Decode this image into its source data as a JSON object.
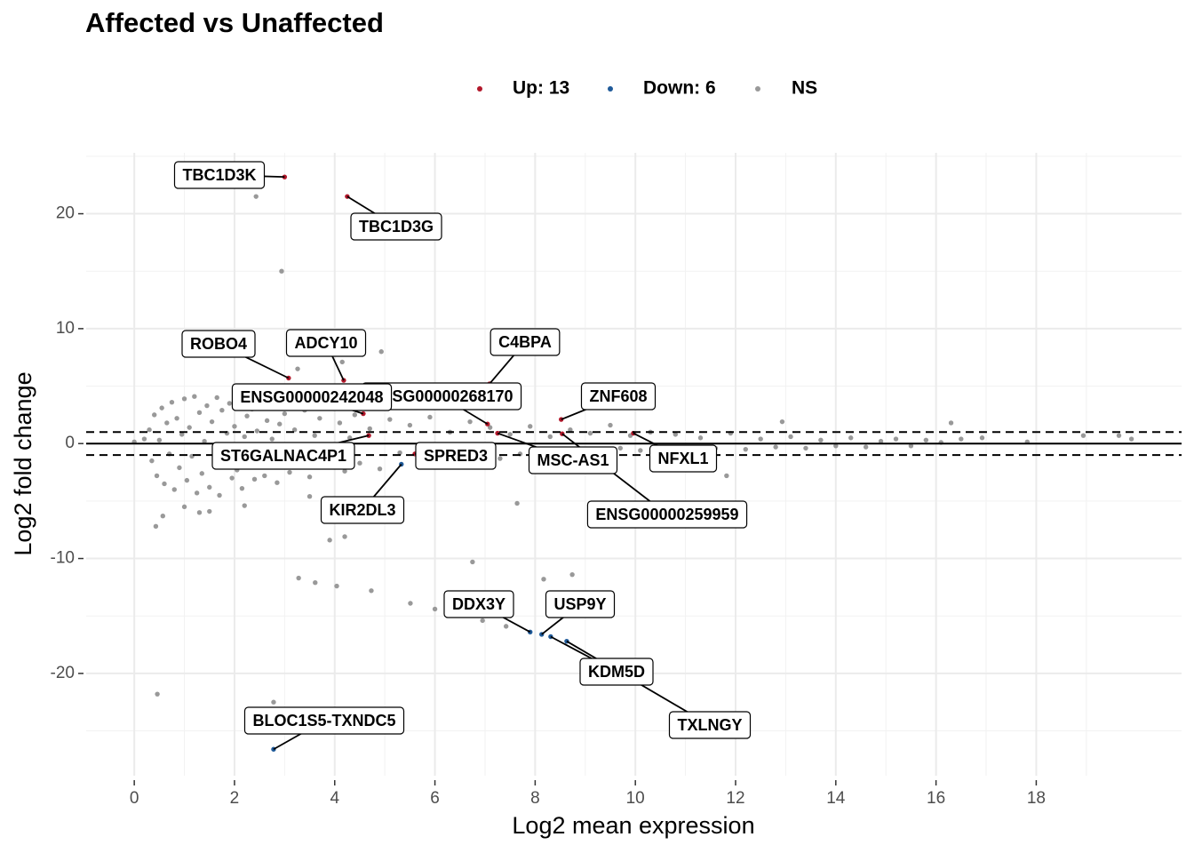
{
  "chart_data": {
    "type": "scatter",
    "title": "Affected vs Unaffected",
    "xlabel": "Log2 mean expression",
    "ylabel": "Log2 fold change",
    "xlim": [
      -0.96,
      20.9
    ],
    "ylim": [
      -28.9,
      25.3
    ],
    "xticks": [
      0,
      2,
      4,
      6,
      8,
      10,
      12,
      14,
      16,
      18
    ],
    "yticks": [
      -20,
      -10,
      0,
      10,
      20
    ],
    "x_minor_grid": [
      1,
      3,
      5,
      7,
      9,
      11,
      13,
      15,
      17,
      19
    ],
    "y_minor_grid": [
      -25,
      -15,
      -5,
      5,
      15,
      25
    ],
    "grid": true,
    "legend": "top",
    "reference_lines": [
      {
        "value": 0,
        "style": "solid"
      },
      {
        "value": 1,
        "style": "dashed"
      },
      {
        "value": -1,
        "style": "dashed"
      }
    ],
    "series": [
      {
        "name": "Up: 13",
        "color": "#b2182b",
        "labels": [
          "TBC1D3K",
          "TBC1D3G",
          "ROBO4",
          "ADCY10",
          "C4BPA",
          "ENSG00000268170",
          "ENSG00000242048",
          "ZNF608",
          "ST6GALNAC4P1",
          "SPRED3",
          "MSC-AS1",
          "NFXL1",
          "ENSG00000259959"
        ],
        "x": [
          3.0,
          4.25,
          3.08,
          4.18,
          7.09,
          7.05,
          4.57,
          8.52,
          4.68,
          5.6,
          7.25,
          9.96,
          8.54
        ],
        "y": [
          23.2,
          21.5,
          5.7,
          5.5,
          5.2,
          1.7,
          2.6,
          2.1,
          0.7,
          -0.9,
          0.9,
          0.9,
          0.85
        ]
      },
      {
        "name": "Down: 6",
        "color": "#1f5a99",
        "labels": [
          "KIR2DL3",
          "DDX3Y",
          "USP9Y",
          "KDM5D",
          "TXLNGY",
          "BLOC1S5-TXNDC5"
        ],
        "x": [
          5.33,
          7.9,
          8.13,
          8.31,
          8.63,
          2.78
        ],
        "y": [
          -1.8,
          -16.4,
          -16.6,
          -16.8,
          -17.2,
          -26.6
        ]
      },
      {
        "name": "NS",
        "color": "#999999",
        "x": [
          0.3,
          0.35,
          0.4,
          0.45,
          0.5,
          0.55,
          0.6,
          0.65,
          0.7,
          0.75,
          0.8,
          0.85,
          0.9,
          0.95,
          1.0,
          1.05,
          1.1,
          1.15,
          1.2,
          1.25,
          1.3,
          1.35,
          1.4,
          1.45,
          1.5,
          1.55,
          1.6,
          1.65,
          1.7,
          1.75,
          1.8,
          1.85,
          1.9,
          1.95,
          2.0,
          2.05,
          2.1,
          2.15,
          2.2,
          2.25,
          2.3,
          2.35,
          2.4,
          2.45,
          2.5,
          2.55,
          2.6,
          2.65,
          2.7,
          2.75,
          2.8,
          2.85,
          2.9,
          2.95,
          3.0,
          3.1,
          3.2,
          3.3,
          3.4,
          3.5,
          3.6,
          3.7,
          3.8,
          3.9,
          4.0,
          4.1,
          4.2,
          4.3,
          4.4,
          4.5,
          4.7,
          4.9,
          5.1,
          5.3,
          5.5,
          5.7,
          5.9,
          6.1,
          6.3,
          6.5,
          6.7,
          6.9,
          7.1,
          7.3,
          7.5,
          7.7,
          7.9,
          8.1,
          8.3,
          8.5,
          8.7,
          8.9,
          9.1,
          9.3,
          9.5,
          9.7,
          9.9,
          10.1,
          10.3,
          10.5,
          10.8,
          11.0,
          11.3,
          11.6,
          11.9,
          12.2,
          12.5,
          12.8,
          13.1,
          13.4,
          13.7,
          14.0,
          14.3,
          14.6,
          14.9,
          15.2,
          15.5,
          15.8,
          16.1,
          16.5,
          0.2,
          1.0,
          1.3,
          1.5,
          2.2,
          3.0,
          3.5,
          2.43,
          2.94,
          4.93,
          0.46,
          2.78,
          3.28,
          3.61,
          4.04,
          4.2,
          3.9,
          4.73,
          5.51,
          6.75,
          8.17,
          8.74,
          7.64,
          6.95,
          7.42,
          6.0,
          4.15,
          3.26,
          17.82,
          19.65,
          19.9,
          18.94,
          16.92,
          16.3,
          12.93,
          11.82,
          0.43,
          0.57,
          0.0
        ],
        "y": [
          1.2,
          -1.5,
          2.5,
          -2.8,
          0.3,
          3.1,
          -3.5,
          1.8,
          -0.9,
          3.6,
          -4.0,
          2.2,
          -2.1,
          0.8,
          3.9,
          -3.2,
          1.4,
          -1.1,
          4.1,
          -4.3,
          2.7,
          -2.6,
          0.2,
          3.3,
          -3.8,
          1.9,
          -0.5,
          4.0,
          -4.5,
          2.9,
          -1.8,
          0.9,
          3.5,
          -3.0,
          1.5,
          -2.3,
          4.2,
          -3.9,
          0.6,
          2.4,
          -1.4,
          3.0,
          -3.1,
          1.1,
          -0.7,
          3.8,
          -2.8,
          2.0,
          -1.9,
          0.4,
          3.2,
          -3.4,
          1.7,
          -0.3,
          2.6,
          -2.5,
          1.2,
          -1.6,
          2.9,
          -2.9,
          0.7,
          2.2,
          -2.0,
          3.1,
          -1.2,
          1.8,
          -2.4,
          0.5,
          2.5,
          -1.7,
          1.3,
          -2.2,
          2.1,
          -0.8,
          1.6,
          -1.5,
          2.3,
          -1.9,
          1.0,
          -1.1,
          1.9,
          -0.6,
          1.4,
          -1.3,
          0.8,
          -0.9,
          1.5,
          -1.0,
          0.6,
          -0.7,
          1.2,
          -0.5,
          0.9,
          -0.8,
          1.6,
          -0.4,
          0.7,
          -0.6,
          1.0,
          -0.3,
          0.8,
          -0.7,
          0.5,
          -0.4,
          0.9,
          -0.5,
          0.4,
          -0.3,
          0.6,
          -0.4,
          0.3,
          -0.2,
          0.5,
          -0.3,
          0.2,
          0.4,
          -0.2,
          0.3,
          0.1,
          0.4,
          0.4,
          -5.5,
          -6.0,
          -5.9,
          -5.4,
          4.4,
          -4.6,
          21.5,
          15.0,
          8.0,
          -21.8,
          -22.5,
          -11.7,
          -12.1,
          -12.4,
          -8.1,
          -8.4,
          -12.8,
          -13.9,
          -10.3,
          -11.8,
          -11.4,
          -5.2,
          -15.4,
          -15.9,
          -14.4,
          7.1,
          6.5,
          0.15,
          0.7,
          0.4,
          0.7,
          0.5,
          1.8,
          1.9,
          -2.8,
          -7.2,
          -6.3,
          0.15
        ]
      }
    ]
  }
}
